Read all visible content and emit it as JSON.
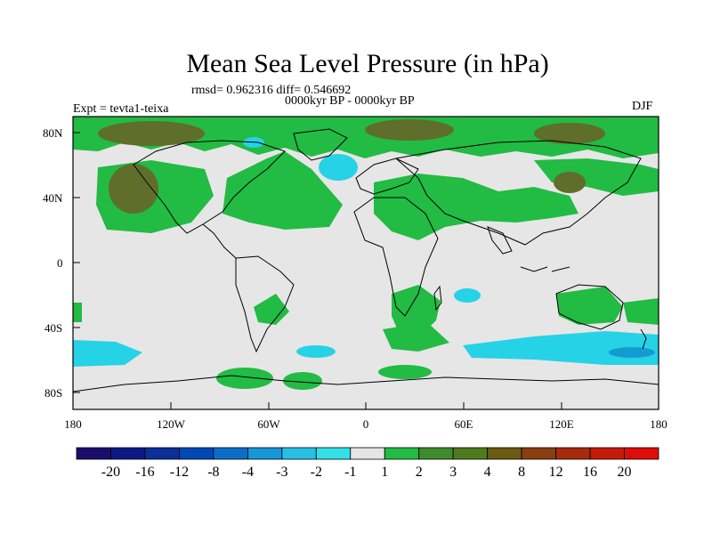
{
  "title": "Mean Sea Level Pressure (in hPa)",
  "stats_line": "rmsd= 0.962316 diff= 0.546692",
  "period": "0000kyr BP - 0000kyr BP",
  "experiment": "Expt = tevta1-teixa",
  "season": "DJF",
  "lat_labels": [
    "80N",
    "40N",
    "0",
    "40S",
    "80S"
  ],
  "lon_labels": [
    "180",
    "120W",
    "60W",
    "0",
    "60E",
    "120E",
    "180"
  ],
  "colorbar": {
    "labels": [
      "-20",
      "-16",
      "-12",
      "-8",
      "-4",
      "-3",
      "-2",
      "-1",
      "1",
      "2",
      "3",
      "4",
      "8",
      "12",
      "16",
      "20"
    ],
    "colors": [
      "#1a0d6e",
      "#0d1a85",
      "#0d2f9a",
      "#0048b5",
      "#0a6ec8",
      "#1597d8",
      "#26bfe6",
      "#33e0e8",
      "#e5e5e5",
      "#22bb44",
      "#3d8c2c",
      "#4f7a1e",
      "#6b5a12",
      "#8a3f10",
      "#a82a0c",
      "#c51a0a",
      "#e00c08"
    ]
  },
  "colors": {
    "ocean_neutral": "#e6e6e6",
    "green_2": "#33bb44",
    "olive_3": "#5f7d3a",
    "cyan_neg": "#22d0e0",
    "blue_neg": "#0a7fc0",
    "coast": "#000000"
  }
}
